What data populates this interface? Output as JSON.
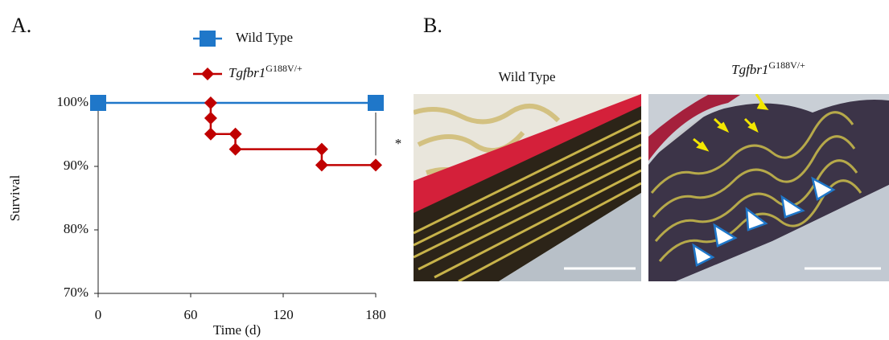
{
  "panel_a": {
    "label": "A."
  },
  "chart_data": {
    "type": "line",
    "xlabel": "Time (d)",
    "ylabel": "Survival",
    "xlim": [
      0,
      180
    ],
    "xticks": [
      0,
      60,
      120,
      180
    ],
    "ylim": [
      70,
      100
    ],
    "yticks": [
      {
        "value": 70,
        "label": "70%"
      },
      {
        "value": 80,
        "label": "80%"
      },
      {
        "value": 90,
        "label": "90%"
      },
      {
        "value": 100,
        "label": "100%"
      }
    ],
    "series": [
      {
        "name": "Wild Type",
        "color": "#1f77c9",
        "marker": "square",
        "x": [
          0,
          180
        ],
        "values": [
          100,
          100
        ]
      },
      {
        "name": "Tgfbr1",
        "name_sup": "G188V/+",
        "color": "#c00000",
        "marker": "diamond",
        "x": [
          73,
          73,
          73,
          89,
          89,
          145,
          145,
          180
        ],
        "values": [
          100,
          97.6,
          95.1,
          95.1,
          92.7,
          92.7,
          90.2,
          90.2
        ]
      }
    ],
    "annotation": "*"
  },
  "panel_b": {
    "label": "B.",
    "images": [
      {
        "title": "Wild Type"
      },
      {
        "title": "Tgfbr1",
        "title_sup": "G188V/+"
      }
    ]
  }
}
